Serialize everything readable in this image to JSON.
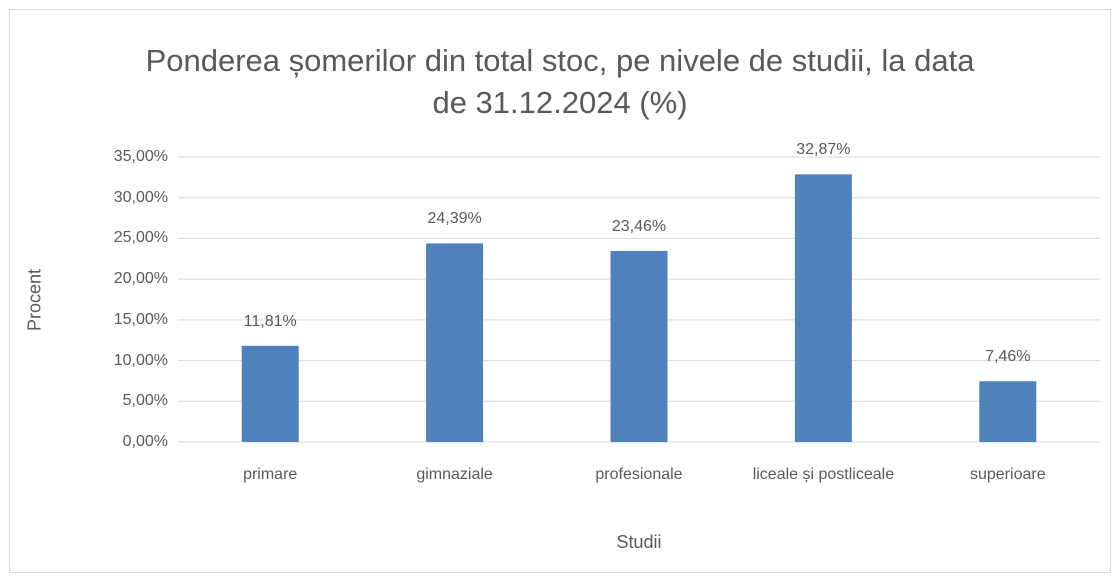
{
  "chart_data": {
    "type": "bar",
    "title": "Ponderea șomerilor din total stoc, pe nivele de studii, la data de 31.12.2024  (%)",
    "x_label": "Studii",
    "y_label": "Procent",
    "categories": [
      "primare",
      "gimnaziale",
      "profesionale",
      "liceale și postliceale",
      "superioare"
    ],
    "values": [
      11.81,
      24.39,
      23.46,
      32.87,
      7.46
    ],
    "value_labels": [
      "11,81%",
      "24,39%",
      "23,46%",
      "32,87%",
      "7,46%"
    ],
    "color": "#4f81bd",
    "ylim": [
      0,
      35
    ],
    "yticks": [
      {
        "value": 0,
        "label": "0,00%"
      },
      {
        "value": 5,
        "label": "5,00%"
      },
      {
        "value": 10,
        "label": "10,00%"
      },
      {
        "value": 15,
        "label": "15,00%"
      },
      {
        "value": 20,
        "label": "20,00%"
      },
      {
        "value": 25,
        "label": "25,00%"
      },
      {
        "value": 30,
        "label": "30,00%"
      },
      {
        "value": 35,
        "label": "35,00%"
      }
    ],
    "grid": true
  }
}
